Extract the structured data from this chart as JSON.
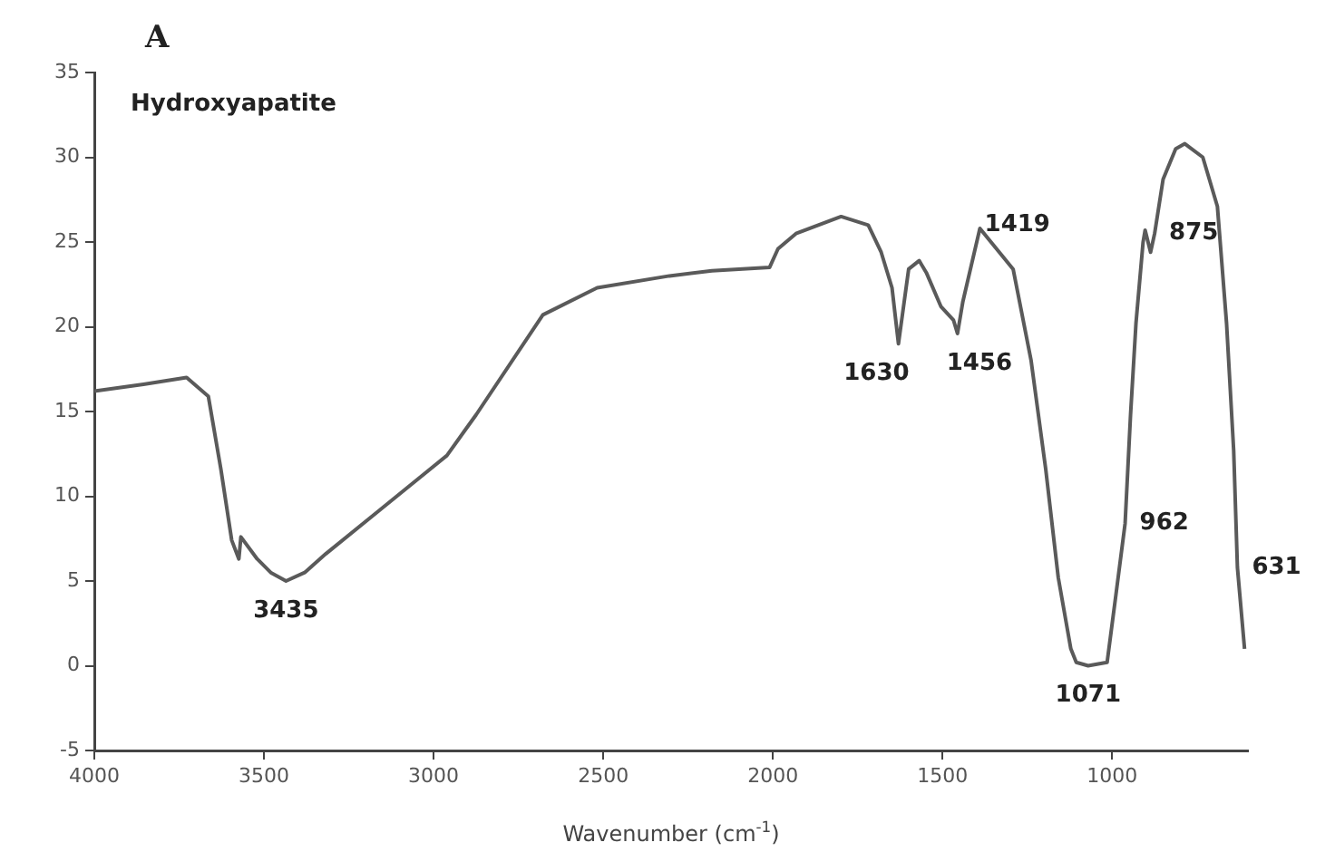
{
  "chart_data": {
    "type": "line",
    "title": "A",
    "subtitle": "Hydroxyapatite",
    "xlabel": "Wavenumber (cm$^{-1}$)",
    "x": [
      4000,
      3855,
      3728,
      3664,
      3627,
      3595,
      3574,
      3568,
      3520,
      3480,
      3435,
      3380,
      3318,
      3158,
      2961,
      2875,
      2678,
      2518,
      2305,
      2180,
      2010,
      1985,
      1932,
      1799,
      1719,
      1681,
      1649,
      1630,
      1600,
      1569,
      1548,
      1505,
      1468,
      1456,
      1440,
      1390,
      1292,
      1239,
      1196,
      1159,
      1122,
      1106,
      1071,
      1015,
      989,
      962,
      946,
      930,
      909,
      903,
      887,
      875,
      850,
      813,
      786,
      733,
      690,
      663,
      642,
      631,
      610
    ],
    "series": [
      {
        "color": "#5a5a5a",
        "values": [
          16.2,
          16.6,
          17.0,
          15.9,
          11.6,
          7.4,
          6.3,
          7.6,
          6.3,
          5.5,
          5.0,
          5.5,
          6.6,
          9.2,
          12.4,
          14.8,
          20.7,
          22.3,
          23.0,
          23.3,
          23.5,
          24.6,
          25.5,
          26.5,
          26.0,
          24.4,
          22.3,
          19.0,
          23.4,
          23.9,
          23.2,
          21.2,
          20.4,
          19.6,
          21.5,
          25.8,
          23.4,
          18.0,
          11.6,
          5.2,
          1.0,
          0.2,
          0.0,
          0.2,
          4.2,
          8.4,
          14.8,
          20.2,
          25.0,
          25.7,
          24.4,
          25.5,
          28.7,
          30.5,
          30.8,
          30.0,
          27.1,
          20.2,
          12.7,
          5.8,
          1.0
        ]
      }
    ],
    "xlim": [
      4000,
      600
    ],
    "xticks": [
      4000,
      3500,
      3000,
      2500,
      2000,
      1500,
      1000
    ],
    "ylim": [
      -5,
      35
    ],
    "yticks": [
      -5,
      0,
      5,
      10,
      15,
      20,
      25,
      30,
      35
    ],
    "grid": false,
    "legend": false,
    "marker": "none",
    "line_style": "solid",
    "annotations": [
      {
        "text": "3435",
        "x": 3435,
        "y": 5.0
      },
      {
        "text": "1630",
        "x": 1630,
        "y": 19.0
      },
      {
        "text": "1456",
        "x": 1456,
        "y": 19.6
      },
      {
        "text": "1419",
        "x": 1419,
        "y": 26.0
      },
      {
        "text": "875",
        "x": 875,
        "y": 25.5
      },
      {
        "text": "1071",
        "x": 1071,
        "y": 0.0
      },
      {
        "text": "962",
        "x": 962,
        "y": 8.4
      },
      {
        "text": "631",
        "x": 631,
        "y": 5.8
      }
    ]
  }
}
